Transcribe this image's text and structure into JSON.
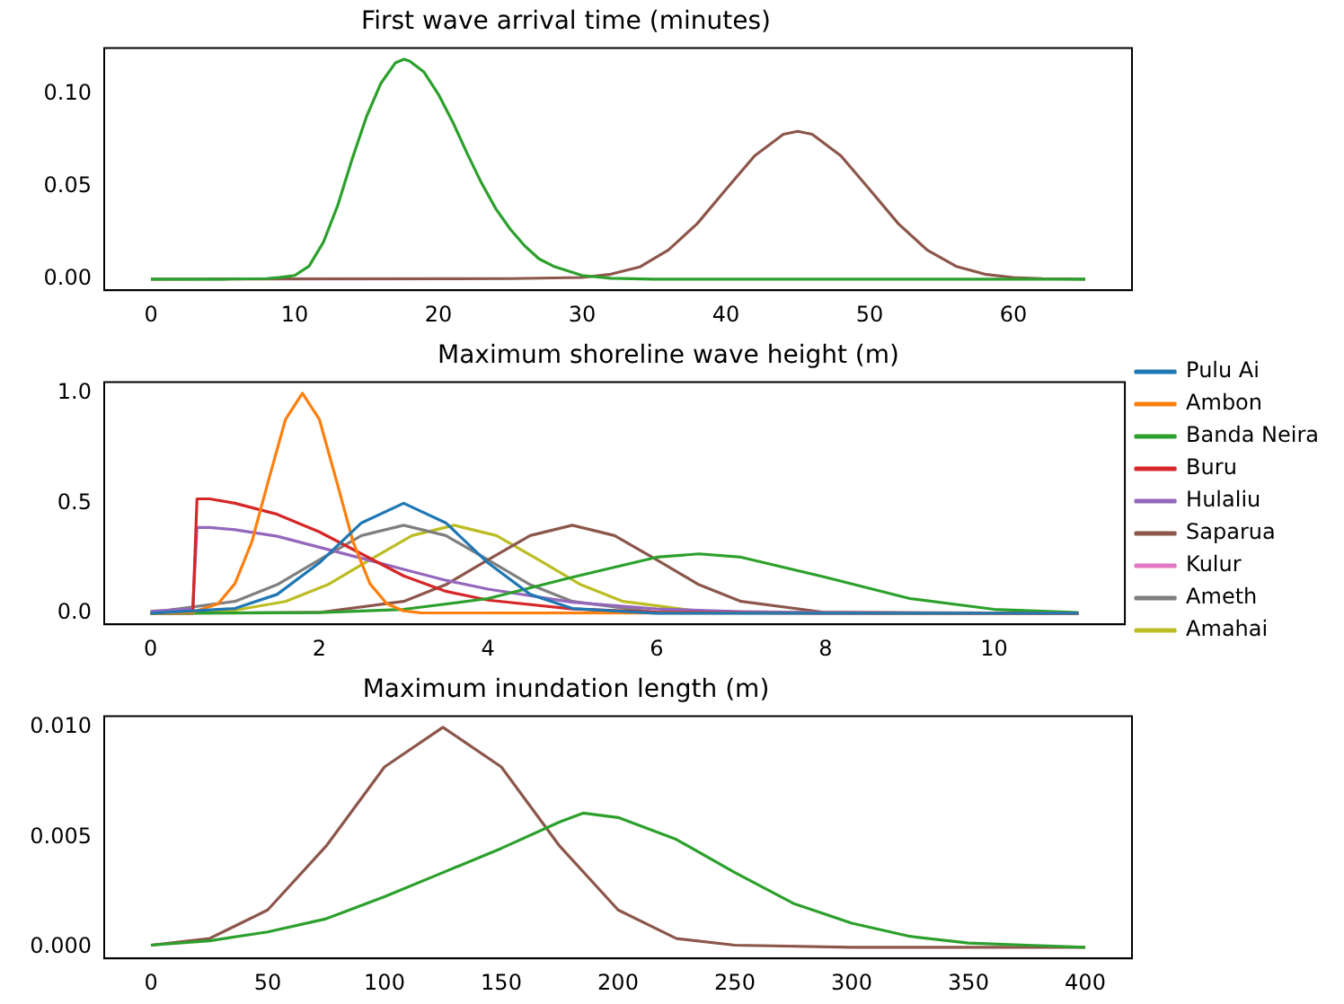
{
  "chart_data": [
    {
      "type": "line",
      "title": "First wave arrival time (minutes)",
      "xlim": [
        -3.25,
        68.25
      ],
      "xticks": [
        0,
        10,
        20,
        30,
        40,
        50,
        60
      ],
      "ylim": [
        -0.006,
        0.125
      ],
      "yticks": [
        {
          "value": 0,
          "label": "0.00"
        },
        {
          "value": 0.05,
          "label": "0.05"
        },
        {
          "value": 0.1,
          "label": "0.10"
        }
      ],
      "grid": false,
      "legend": false,
      "marker": "none",
      "line_style": "solid",
      "series": [
        {
          "color": "#2ca02c",
          "x": [
            0,
            5,
            8,
            9,
            10,
            11,
            12,
            13,
            14,
            15,
            16,
            17,
            17.6,
            18,
            19,
            20,
            21,
            22,
            23,
            24,
            25,
            26,
            27,
            28,
            30,
            32,
            35,
            40,
            50,
            65
          ],
          "values": [
            0,
            0,
            0.0003,
            0.001,
            0.002,
            0.007,
            0.02,
            0.04,
            0.065,
            0.088,
            0.106,
            0.117,
            0.119,
            0.118,
            0.112,
            0.1,
            0.085,
            0.068,
            0.052,
            0.038,
            0.027,
            0.018,
            0.011,
            0.007,
            0.002,
            0.0005,
            0,
            0,
            0,
            0
          ]
        },
        {
          "color": "#8c564b",
          "x": [
            0,
            25,
            30,
            32,
            34,
            36,
            38,
            40,
            42,
            44,
            45,
            46,
            48,
            50,
            52,
            54,
            56,
            58,
            60,
            62,
            65
          ],
          "values": [
            0,
            0.0003,
            0.0009,
            0.0027,
            0.0066,
            0.0158,
            0.03,
            0.0485,
            0.0667,
            0.0784,
            0.08,
            0.0784,
            0.0667,
            0.0485,
            0.03,
            0.0158,
            0.007,
            0.0027,
            0.0009,
            0.0003,
            0
          ]
        }
      ]
    },
    {
      "type": "line",
      "title": "Maximum shoreline wave height (m)",
      "xlim": [
        -0.55,
        11.55
      ],
      "xticks": [
        0,
        2,
        4,
        6,
        8,
        10
      ],
      "ylim": [
        -0.05,
        1.05
      ],
      "yticks": [
        {
          "value": 0,
          "label": "0.0"
        },
        {
          "value": 0.5,
          "label": "0.5"
        },
        {
          "value": 1,
          "label": "1.0"
        }
      ],
      "grid": false,
      "legend": "right",
      "marker": "none",
      "line_style": "solid",
      "series": [
        {
          "name": "Pulu Ai",
          "color": "#1f77b4",
          "x": [
            0,
            1,
            1.5,
            2,
            2.5,
            3,
            3.5,
            4,
            4.5,
            5,
            6,
            11
          ],
          "values": [
            0,
            0.022,
            0.086,
            0.229,
            0.411,
            0.5,
            0.411,
            0.229,
            0.086,
            0.022,
            0,
            0
          ]
        },
        {
          "name": "Ambon",
          "color": "#ff7f0e",
          "x": [
            0,
            0.5,
            0.8,
            1,
            1.2,
            1.4,
            1.6,
            1.8,
            2,
            2.2,
            2.4,
            2.6,
            2.8,
            3,
            3.2,
            11
          ],
          "values": [
            0,
            0.005,
            0.044,
            0.135,
            0.325,
            0.607,
            0.882,
            1,
            0.882,
            0.607,
            0.325,
            0.135,
            0.044,
            0.011,
            0.002,
            0
          ]
        },
        {
          "name": "Banda Neira",
          "color": "#2ca02c",
          "x": [
            0,
            2,
            3,
            4,
            5,
            6,
            6.5,
            7,
            8,
            9,
            10,
            11
          ],
          "values": [
            0,
            0.003,
            0.018,
            0.067,
            0.164,
            0.255,
            0.27,
            0.255,
            0.164,
            0.067,
            0.018,
            0.003
          ]
        },
        {
          "name": "Buru",
          "color": "#d62728",
          "x": [
            0,
            0.5,
            0.55,
            0.7,
            1,
            1.5,
            2,
            2.5,
            3,
            3.5,
            4,
            5,
            6,
            8,
            11
          ],
          "values": [
            0,
            0,
            0.52,
            0.52,
            0.5,
            0.45,
            0.37,
            0.27,
            0.17,
            0.1,
            0.06,
            0.02,
            0.005,
            0,
            0
          ]
        },
        {
          "name": "Hulaliu",
          "color": "#9467bd",
          "x": [
            0,
            0.5,
            0.55,
            0.7,
            1,
            1.5,
            2,
            2.5,
            3,
            3.5,
            4,
            5,
            6,
            7,
            8,
            11
          ],
          "values": [
            0.01,
            0.02,
            0.39,
            0.39,
            0.38,
            0.35,
            0.3,
            0.25,
            0.2,
            0.15,
            0.11,
            0.05,
            0.02,
            0.008,
            0.003,
            0
          ]
        },
        {
          "name": "Saparua",
          "color": "#8c564b",
          "x": [
            0,
            2,
            3,
            3.5,
            4,
            4.5,
            5,
            5.5,
            6,
            6.5,
            7,
            8,
            11
          ],
          "values": [
            0,
            0.004,
            0.054,
            0.13,
            0.243,
            0.353,
            0.4,
            0.353,
            0.243,
            0.13,
            0.054,
            0.004,
            0
          ]
        },
        {
          "name": "Kulur",
          "color": "#e377c2"
        },
        {
          "name": "Ameth",
          "color": "#7f7f7f",
          "x": [
            0,
            1,
            1.5,
            2,
            2.5,
            3,
            3.5,
            4,
            4.5,
            5,
            6,
            11
          ],
          "values": [
            0.004,
            0.054,
            0.13,
            0.243,
            0.353,
            0.4,
            0.353,
            0.243,
            0.13,
            0.054,
            0.004,
            0
          ]
        },
        {
          "name": "Amahai",
          "color": "#bcbd22",
          "x": [
            0,
            1,
            1.6,
            2.1,
            2.6,
            3.1,
            3.6,
            4.1,
            4.6,
            5.1,
            5.6,
            6.6,
            11
          ],
          "values": [
            0.001,
            0.014,
            0.054,
            0.13,
            0.243,
            0.353,
            0.4,
            0.353,
            0.243,
            0.13,
            0.054,
            0.004,
            0
          ]
        }
      ]
    },
    {
      "type": "line",
      "title": "Maximum inundation length (m)",
      "xlim": [
        -20,
        420
      ],
      "xticks": [
        0,
        50,
        100,
        150,
        200,
        250,
        300,
        350,
        400
      ],
      "ylim": [
        -0.0005,
        0.0105
      ],
      "yticks": [
        {
          "value": 0,
          "label": "0.000"
        },
        {
          "value": 0.005,
          "label": "0.005"
        },
        {
          "value": 0.01,
          "label": "0.010"
        }
      ],
      "grid": false,
      "legend": false,
      "marker": "none",
      "line_style": "solid",
      "series": [
        {
          "color": "#2ca02c",
          "x": [
            0,
            25,
            50,
            75,
            100,
            125,
            150,
            175,
            185,
            200,
            225,
            250,
            275,
            300,
            325,
            350,
            375,
            400
          ],
          "values": [
            0.0001,
            0.0003,
            0.0007,
            0.0013,
            0.0023,
            0.0034,
            0.0045,
            0.0057,
            0.0061,
            0.0059,
            0.0049,
            0.0034,
            0.002,
            0.0011,
            0.0005,
            0.0002,
            0.0001,
            0
          ]
        },
        {
          "color": "#8c564b",
          "x": [
            0,
            25,
            50,
            75,
            100,
            125,
            150,
            175,
            200,
            225,
            250,
            300,
            400
          ],
          "values": [
            0.0001,
            0.0004,
            0.0017,
            0.0046,
            0.0082,
            0.01,
            0.0082,
            0.0046,
            0.0017,
            0.0004,
            0.0001,
            0,
            0
          ]
        }
      ]
    }
  ]
}
